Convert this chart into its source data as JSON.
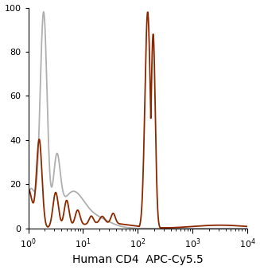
{
  "title": "",
  "xlabel": "Human CD4  APC-Cy5.5",
  "ylabel": "",
  "xlim_log": [
    1,
    10000
  ],
  "ylim": [
    0,
    100
  ],
  "yticks": [
    0,
    20,
    40,
    60,
    80,
    100
  ],
  "xtick_locs": [
    1,
    10,
    100,
    1000,
    10000
  ],
  "xtick_labels": [
    "10$^0$",
    "10$^1$",
    "10$^2$",
    "10$^3$",
    "10$^4$"
  ],
  "gray_color": "#b0b0b0",
  "brown_color": "#8B2800",
  "linewidth": 1.3,
  "background_color": "#ffffff",
  "xlabel_fontsize": 10,
  "ytick_fontsize": 8,
  "xtick_fontsize": 8
}
